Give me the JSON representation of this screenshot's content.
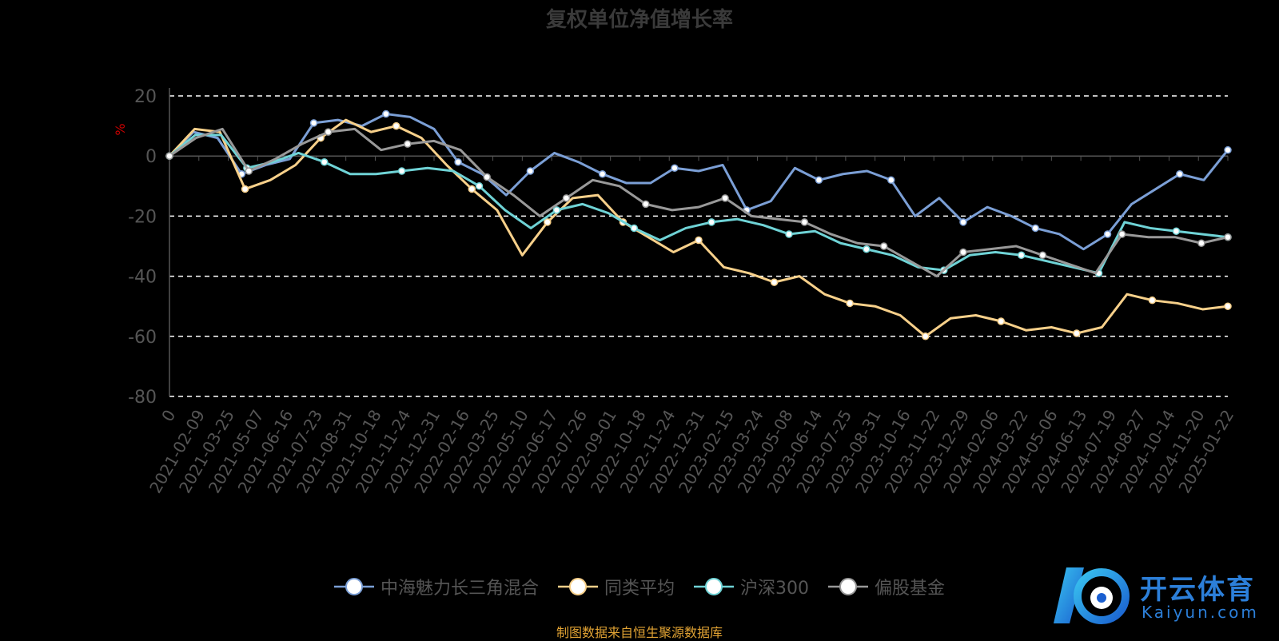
{
  "title": "复权单位净值增长率",
  "source_note": "制图数据来自恒生聚源数据库",
  "logo": {
    "cn": "开云体育",
    "en": "Kaiyun.com"
  },
  "colors": {
    "fund": "#7b9fd6",
    "peer_avg": "#f7d08a",
    "hs300": "#6fd3d6",
    "equity_fund": "#999999",
    "axis": "#555555",
    "grid": "#ffffff",
    "ylabel": "#cc0000",
    "title": "#3a3a3a",
    "source": "#e0a233"
  },
  "chart_data": {
    "type": "line",
    "title": "复权单位净值增长率",
    "ylabel": "%",
    "ylim": [
      -80,
      20
    ],
    "yticks": [
      20,
      0,
      -20,
      -40,
      -60,
      -80
    ],
    "grid": true,
    "legend_position": "bottom",
    "x_tick_labels": [
      "0",
      "2021-02-09",
      "2021-03-25",
      "2021-05-07",
      "2021-06-16",
      "2021-07-23",
      "2021-08-31",
      "2021-10-18",
      "2021-11-24",
      "2021-12-31",
      "2022-02-16",
      "2022-03-25",
      "2022-05-10",
      "2022-06-17",
      "2022-07-26",
      "2022-09-01",
      "2022-10-18",
      "2022-11-24",
      "2022-12-31",
      "2023-02-15",
      "2023-03-24",
      "2023-05-08",
      "2023-06-14",
      "2023-07-25",
      "2023-08-31",
      "2023-10-16",
      "2023-11-22",
      "2023-12-29",
      "2024-02-06",
      "2024-03-22",
      "2024-05-06",
      "2024-06-13",
      "2024-07-19",
      "2024-08-27",
      "2024-10-14",
      "2024-11-20",
      "2025-01-22"
    ],
    "series": [
      {
        "name": "中海魅力长三角混合",
        "color_key": "fund",
        "values": [
          0,
          8,
          6,
          -6,
          -3,
          -1,
          11,
          12,
          10,
          14,
          13,
          9,
          -2,
          -6,
          -13,
          -5,
          1,
          -2,
          -6,
          -9,
          -9,
          -4,
          -5,
          -3,
          -18,
          -15,
          -4,
          -8,
          -6,
          -5,
          -8,
          -20,
          -14,
          -22,
          -17,
          -20,
          -24,
          -26,
          -31,
          -26,
          -16,
          -11,
          -6,
          -8,
          2
        ]
      },
      {
        "name": "同类平均",
        "color_key": "peer_avg",
        "values": [
          0,
          9,
          8,
          -11,
          -8,
          -3,
          6,
          12,
          8,
          10,
          6,
          -3,
          -11,
          -18,
          -33,
          -22,
          -14,
          -13,
          -22,
          -27,
          -32,
          -28,
          -37,
          -39,
          -42,
          -40,
          -46,
          -49,
          -50,
          -53,
          -60,
          -54,
          -53,
          -55,
          -58,
          -57,
          -59,
          -57,
          -46,
          -48,
          -49,
          -51,
          -50
        ]
      },
      {
        "name": "沪深300",
        "color_key": "hs300",
        "values": [
          0,
          7,
          7,
          -4,
          -2,
          1,
          -2,
          -6,
          -6,
          -5,
          -4,
          -5,
          -10,
          -18,
          -24,
          -18,
          -16,
          -19,
          -24,
          -28,
          -24,
          -22,
          -21,
          -23,
          -26,
          -25,
          -29,
          -31,
          -33,
          -37,
          -38,
          -33,
          -32,
          -33,
          -35,
          -37,
          -39,
          -22,
          -24,
          -25,
          -26,
          -27
        ]
      },
      {
        "name": "偏股基金",
        "color_key": "equity_fund",
        "values": [
          0,
          6,
          9,
          -5,
          -1,
          4,
          8,
          9,
          2,
          4,
          5,
          2,
          -7,
          -13,
          -20,
          -14,
          -8,
          -10,
          -16,
          -18,
          -17,
          -14,
          -20,
          -21,
          -22,
          -26,
          -29,
          -30,
          -35,
          -40,
          -32,
          -31,
          -30,
          -33,
          -36,
          -39,
          -26,
          -27,
          -27,
          -29,
          -27
        ]
      }
    ]
  }
}
